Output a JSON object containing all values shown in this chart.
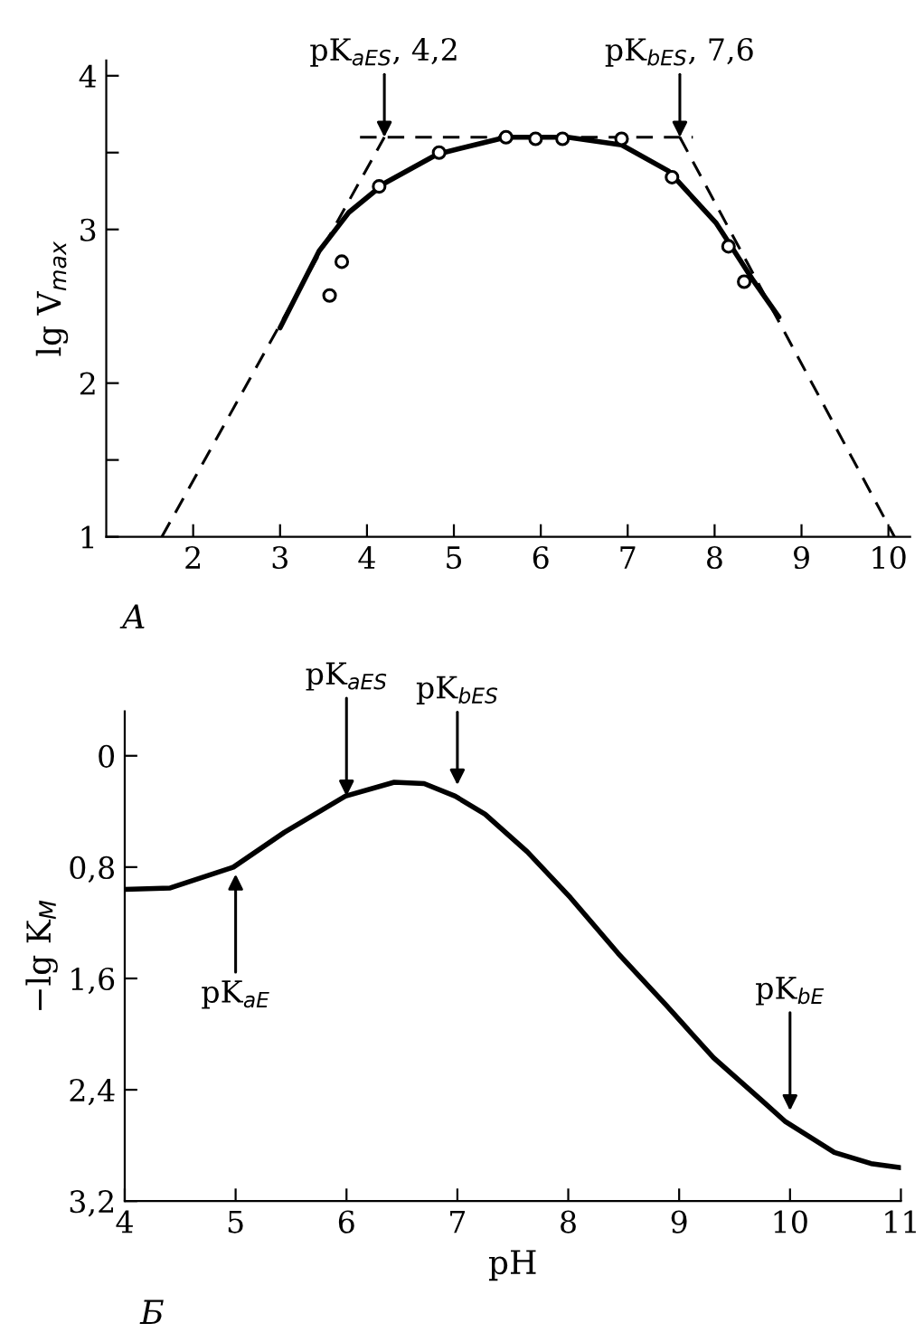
{
  "chart_data": [
    {
      "type": "line",
      "ylabel": "lg V$_{max}$",
      "xlim": [
        1,
        10.25
      ],
      "ylim": [
        1,
        4.1
      ],
      "xticks": [
        2,
        3,
        4,
        5,
        6,
        7,
        8,
        9,
        10
      ],
      "yticks": [
        1,
        {
          "value": 1.5,
          "label": null
        },
        2,
        3,
        {
          "value": 3.5,
          "label": null
        },
        4
      ],
      "grid": false,
      "legend": false,
      "series": [
        {
          "type": "scatter",
          "marker": "circle",
          "color": "#000000",
          "x": [
            3.57,
            3.71,
            4.14,
            4.83,
            5.6,
            5.94,
            6.25,
            6.93,
            7.51,
            8.16,
            8.34
          ],
          "values": [
            2.57,
            2.79,
            3.28,
            3.5,
            3.6,
            3.59,
            3.59,
            3.59,
            3.34,
            2.89,
            2.66
          ]
        },
        {
          "line_style": "solid",
          "color": "#000000",
          "x": [
            3.0,
            3.45,
            3.79,
            4.2,
            4.81,
            5.6,
            6.31,
            6.93,
            7.47,
            8.02,
            8.43,
            8.74
          ],
          "values": [
            2.36,
            2.86,
            3.11,
            3.3,
            3.49,
            3.6,
            3.6,
            3.55,
            3.38,
            3.04,
            2.68,
            2.43
          ]
        },
        {
          "line_style": "dashed",
          "color": "#000000",
          "x": [
            1.64,
            4.2
          ],
          "values": [
            1,
            3.6
          ]
        },
        {
          "line_style": "dashed",
          "color": "#000000",
          "x": [
            3.92,
            7.75
          ],
          "values": [
            3.6,
            3.6
          ]
        },
        {
          "line_style": "dashed",
          "color": "#000000",
          "x": [
            7.6,
            10.07
          ],
          "values": [
            3.6,
            1
          ]
        }
      ],
      "annotations": [
        {
          "text": "pK$_{aES}$, 4,2",
          "x": 4.2,
          "y": 3.6
        },
        {
          "text": "pK$_{bES}$, 7,6",
          "x": 7.6,
          "y": 3.6
        },
        "A"
      ]
    },
    {
      "type": "line",
      "xlabel": "pH",
      "ylabel": "−lg K$_{M}$",
      "xlim": [
        4,
        11
      ],
      "ylim": [
        3.2,
        -0.32
      ],
      "xticks": [
        4,
        5,
        6,
        7,
        8,
        9,
        10,
        11
      ],
      "yticks": [
        {
          "value": 0,
          "label": "0"
        },
        {
          "value": 0.8,
          "label": "0,8"
        },
        {
          "value": 1.6,
          "label": "1,6"
        },
        {
          "value": 2.4,
          "label": "2,4"
        },
        {
          "value": 3.2,
          "label": "3,2"
        }
      ],
      "grid": false,
      "legend": false,
      "series": [
        {
          "line_style": "solid",
          "color": "#000000",
          "x": [
            4,
            4.41,
            4.98,
            5.44,
            5.99,
            6.43,
            6.7,
            6.98,
            7.25,
            7.63,
            8.02,
            8.45,
            8.88,
            9.31,
            9.75,
            9.96,
            10.4,
            10.73,
            11
          ],
          "values": [
            0.96,
            0.95,
            0.8,
            0.55,
            0.29,
            0.19,
            0.2,
            0.29,
            0.42,
            0.69,
            1.02,
            1.42,
            1.79,
            2.17,
            2.48,
            2.63,
            2.85,
            2.93,
            2.96
          ]
        }
      ],
      "annotations": [
        {
          "text": "pK$_{aES}$",
          "x": 6,
          "y": 0.29
        },
        {
          "text": "pK$_{bES}$",
          "x": 7,
          "y": 0.21
        },
        {
          "text": "pK$_{aE}$",
          "x": 5,
          "y": 0.85
        },
        {
          "text": "pK$_{bE}$",
          "x": 10,
          "y": 2.55
        },
        "Б"
      ]
    }
  ]
}
